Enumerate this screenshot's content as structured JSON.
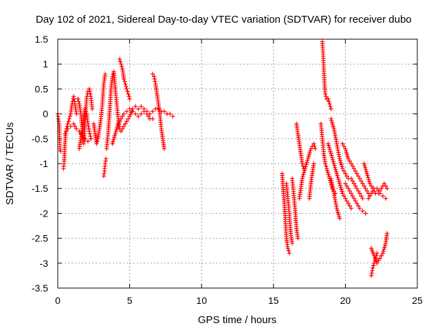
{
  "chart_data": {
    "type": "scatter",
    "title": "Day 102 of 2021, Sidereal Day-to-day VTEC variation (SDTVAR) for receiver dubo",
    "xlabel": "GPS time / hours",
    "ylabel": "SDTVAR / TECUs",
    "xlim": [
      0,
      25
    ],
    "ylim": [
      -3.5,
      1.5
    ],
    "xticks": [
      0,
      5,
      10,
      15,
      20,
      25
    ],
    "xtick_labels": [
      "0",
      "5",
      "10",
      "15",
      "20",
      "25"
    ],
    "yticks": [
      1.5,
      1,
      0.5,
      0,
      -0.5,
      -1,
      -1.5,
      -2,
      -2.5,
      -3,
      -3.5
    ],
    "ytick_labels": [
      "1.5",
      "1",
      "0.5",
      "0",
      "-0.5",
      "-1",
      "-1.5",
      "-2",
      "-2.5",
      "-3",
      "-3.5"
    ],
    "grid": true,
    "marker": "+",
    "marker_color": "#ff0000",
    "series": [
      {
        "name": "SDTVAR",
        "segments": [
          [
            [
              0.0,
              0.0
            ],
            [
              0.05,
              -0.1
            ],
            [
              0.1,
              -0.2
            ],
            [
              0.15,
              -0.7
            ],
            [
              0.2,
              -0.75
            ]
          ],
          [
            [
              0.4,
              -1.1
            ],
            [
              0.45,
              -0.95
            ],
            [
              0.5,
              -0.6
            ],
            [
              0.55,
              -0.4
            ],
            [
              0.6,
              -0.3
            ],
            [
              0.7,
              -0.2
            ],
            [
              0.8,
              -0.1
            ],
            [
              0.9,
              0.0
            ],
            [
              1.0,
              0.2
            ],
            [
              1.1,
              0.35
            ],
            [
              1.2,
              0.2
            ],
            [
              1.3,
              0.0
            ]
          ],
          [
            [
              0.5,
              -0.4
            ],
            [
              0.7,
              -0.3
            ],
            [
              0.9,
              -0.25
            ],
            [
              1.1,
              -0.2
            ],
            [
              1.3,
              -0.3
            ],
            [
              1.5,
              -0.35
            ],
            [
              1.7,
              -0.45
            ],
            [
              1.9,
              -0.5
            ],
            [
              2.1,
              -0.55
            ],
            [
              2.3,
              -0.5
            ]
          ],
          [
            [
              1.4,
              0.3
            ],
            [
              1.5,
              0.2
            ],
            [
              1.6,
              0.0
            ],
            [
              1.7,
              -0.3
            ],
            [
              1.8,
              -0.6
            ],
            [
              1.9,
              -0.2
            ],
            [
              2.0,
              0.3
            ],
            [
              2.1,
              0.45
            ],
            [
              2.2,
              0.5
            ],
            [
              2.3,
              0.35
            ],
            [
              2.4,
              0.1
            ]
          ],
          [
            [
              1.5,
              -0.7
            ],
            [
              1.6,
              -0.5
            ],
            [
              1.7,
              -0.3
            ],
            [
              1.8,
              -0.1
            ],
            [
              1.9,
              0.1
            ],
            [
              2.0,
              0.0
            ],
            [
              2.1,
              -0.2
            ],
            [
              2.2,
              -0.35
            ],
            [
              2.3,
              -0.5
            ]
          ],
          [
            [
              2.5,
              -0.2
            ],
            [
              2.6,
              -0.4
            ],
            [
              2.7,
              -0.6
            ],
            [
              2.8,
              -0.5
            ],
            [
              2.9,
              -0.3
            ],
            [
              3.0,
              -0.1
            ],
            [
              3.1,
              0.2
            ],
            [
              3.2,
              0.6
            ],
            [
              3.3,
              0.8
            ]
          ],
          [
            [
              3.2,
              -1.25
            ],
            [
              3.25,
              -1.15
            ],
            [
              3.3,
              -1.0
            ],
            [
              3.35,
              -0.9
            ]
          ],
          [
            [
              3.4,
              -0.7
            ],
            [
              3.5,
              -0.4
            ],
            [
              3.6,
              0.0
            ],
            [
              3.7,
              0.5
            ],
            [
              3.8,
              0.75
            ],
            [
              3.9,
              0.85
            ],
            [
              4.0,
              0.5
            ],
            [
              4.1,
              0.2
            ],
            [
              4.2,
              -0.1
            ],
            [
              4.3,
              -0.3
            ]
          ],
          [
            [
              4.3,
              1.1
            ],
            [
              4.4,
              1.0
            ],
            [
              4.5,
              0.9
            ],
            [
              4.6,
              0.7
            ],
            [
              4.7,
              0.6
            ],
            [
              4.8,
              0.5
            ],
            [
              4.9,
              0.4
            ],
            [
              5.0,
              0.3
            ]
          ],
          [
            [
              3.8,
              -0.6
            ],
            [
              4.0,
              -0.4
            ],
            [
              4.2,
              -0.2
            ],
            [
              4.4,
              -0.1
            ],
            [
              4.6,
              0.0
            ],
            [
              4.8,
              0.05
            ],
            [
              5.0,
              0.1
            ],
            [
              5.2,
              0.05
            ],
            [
              5.4,
              0.0
            ],
            [
              5.6,
              -0.05
            ],
            [
              5.8,
              0.0
            ],
            [
              6.0,
              0.05
            ],
            [
              6.2,
              0.0
            ],
            [
              6.4,
              -0.1
            ],
            [
              6.6,
              -0.1
            ]
          ],
          [
            [
              4.4,
              -0.35
            ],
            [
              4.6,
              -0.25
            ],
            [
              4.8,
              -0.15
            ],
            [
              5.0,
              -0.05
            ],
            [
              5.2,
              0.1
            ],
            [
              5.4,
              0.15
            ],
            [
              5.6,
              0.1
            ],
            [
              5.8,
              0.15
            ],
            [
              6.0,
              0.1
            ],
            [
              6.2,
              0.05
            ]
          ],
          [
            [
              6.6,
              0.8
            ],
            [
              6.7,
              0.75
            ],
            [
              6.8,
              0.6
            ],
            [
              6.9,
              0.4
            ],
            [
              7.0,
              0.2
            ],
            [
              7.1,
              0.0
            ],
            [
              7.2,
              -0.3
            ],
            [
              7.3,
              -0.5
            ],
            [
              7.4,
              -0.7
            ]
          ],
          [
            [
              6.4,
              0.0
            ],
            [
              6.6,
              0.05
            ],
            [
              6.8,
              0.1
            ],
            [
              7.0,
              0.1
            ],
            [
              7.2,
              0.05
            ],
            [
              7.4,
              0.05
            ],
            [
              7.6,
              0.0
            ],
            [
              7.8,
              0.0
            ],
            [
              8.0,
              -0.05
            ]
          ],
          [
            [
              15.6,
              -1.2
            ],
            [
              15.7,
              -1.6
            ],
            [
              15.8,
              -2.0
            ],
            [
              15.9,
              -2.5
            ],
            [
              16.0,
              -2.7
            ],
            [
              16.1,
              -2.8
            ]
          ],
          [
            [
              15.9,
              -1.4
            ],
            [
              16.0,
              -1.7
            ],
            [
              16.1,
              -2.0
            ],
            [
              16.2,
              -2.4
            ],
            [
              16.3,
              -2.6
            ]
          ],
          [
            [
              16.3,
              -1.3
            ],
            [
              16.4,
              -1.6
            ],
            [
              16.5,
              -1.9
            ],
            [
              16.6,
              -2.3
            ],
            [
              16.7,
              -2.5
            ]
          ],
          [
            [
              16.6,
              -0.2
            ],
            [
              16.7,
              -0.4
            ],
            [
              16.8,
              -0.6
            ],
            [
              16.9,
              -0.8
            ],
            [
              17.0,
              -1.0
            ],
            [
              17.1,
              -1.1
            ]
          ],
          [
            [
              16.8,
              -1.7
            ],
            [
              16.9,
              -1.5
            ],
            [
              17.0,
              -1.3
            ],
            [
              17.2,
              -1.1
            ],
            [
              17.4,
              -0.9
            ],
            [
              17.6,
              -0.7
            ],
            [
              17.8,
              -0.6
            ],
            [
              17.9,
              -0.7
            ]
          ],
          [
            [
              17.5,
              -1.7
            ],
            [
              17.6,
              -1.4
            ],
            [
              17.7,
              -1.2
            ],
            [
              17.8,
              -1.0
            ]
          ],
          [
            [
              18.4,
              1.45
            ],
            [
              18.45,
              1.2
            ],
            [
              18.5,
              0.9
            ],
            [
              18.55,
              0.6
            ],
            [
              18.6,
              0.4
            ],
            [
              18.7,
              0.3
            ],
            [
              18.8,
              0.3
            ],
            [
              18.9,
              0.2
            ],
            [
              19.0,
              0.1
            ]
          ],
          [
            [
              18.3,
              -0.2
            ],
            [
              18.4,
              -0.5
            ],
            [
              18.5,
              -0.8
            ],
            [
              18.6,
              -1.0
            ],
            [
              18.7,
              -1.1
            ],
            [
              18.9,
              -1.3
            ],
            [
              19.1,
              -1.5
            ],
            [
              19.3,
              -1.6
            ]
          ],
          [
            [
              18.8,
              -0.6
            ],
            [
              19.0,
              -0.8
            ],
            [
              19.2,
              -1.0
            ],
            [
              19.4,
              -1.2
            ],
            [
              19.6,
              -1.4
            ],
            [
              19.8,
              -1.6
            ],
            [
              20.0,
              -1.7
            ],
            [
              20.2,
              -1.8
            ],
            [
              20.4,
              -1.9
            ]
          ],
          [
            [
              19.0,
              -0.1
            ],
            [
              19.2,
              -0.3
            ],
            [
              19.4,
              -0.6
            ],
            [
              19.6,
              -0.9
            ],
            [
              19.8,
              -1.1
            ],
            [
              20.0,
              -1.2
            ],
            [
              20.2,
              -1.3
            ],
            [
              20.4,
              -1.3
            ],
            [
              20.6,
              -1.4
            ],
            [
              20.8,
              -1.5
            ],
            [
              21.0,
              -1.6
            ],
            [
              21.2,
              -1.7
            ]
          ],
          [
            [
              19.0,
              -1.3
            ],
            [
              19.2,
              -1.6
            ],
            [
              19.4,
              -1.9
            ],
            [
              19.6,
              -2.1
            ]
          ],
          [
            [
              19.8,
              -0.6
            ],
            [
              20.0,
              -0.7
            ],
            [
              20.2,
              -0.9
            ],
            [
              20.4,
              -1.0
            ],
            [
              20.6,
              -1.1
            ],
            [
              20.8,
              -1.2
            ],
            [
              21.0,
              -1.3
            ],
            [
              21.2,
              -1.4
            ],
            [
              21.4,
              -1.5
            ],
            [
              21.6,
              -1.6
            ]
          ],
          [
            [
              20.0,
              -1.4
            ],
            [
              20.2,
              -1.5
            ],
            [
              20.4,
              -1.6
            ],
            [
              20.6,
              -1.7
            ],
            [
              20.8,
              -1.8
            ],
            [
              21.0,
              -1.9
            ],
            [
              21.2,
              -1.95
            ],
            [
              21.4,
              -2.0
            ]
          ],
          [
            [
              21.3,
              -1.0
            ],
            [
              21.5,
              -1.2
            ],
            [
              21.7,
              -1.4
            ],
            [
              21.9,
              -1.5
            ],
            [
              22.1,
              -1.6
            ],
            [
              22.3,
              -1.6
            ],
            [
              22.5,
              -1.5
            ],
            [
              22.7,
              -1.4
            ],
            [
              22.9,
              -1.5
            ]
          ],
          [
            [
              21.6,
              -1.7
            ],
            [
              21.8,
              -1.6
            ],
            [
              22.0,
              -1.5
            ],
            [
              22.2,
              -1.5
            ],
            [
              22.4,
              -1.6
            ],
            [
              22.6,
              -1.65
            ],
            [
              22.8,
              -1.7
            ]
          ],
          [
            [
              21.8,
              -3.25
            ],
            [
              21.9,
              -3.1
            ],
            [
              22.0,
              -3.0
            ],
            [
              22.1,
              -2.9
            ],
            [
              22.2,
              -2.8
            ]
          ],
          [
            [
              21.8,
              -2.7
            ],
            [
              22.0,
              -2.85
            ],
            [
              22.2,
              -3.0
            ],
            [
              22.4,
              -2.9
            ],
            [
              22.6,
              -2.8
            ],
            [
              22.8,
              -2.6
            ],
            [
              22.9,
              -2.4
            ]
          ]
        ]
      }
    ]
  }
}
